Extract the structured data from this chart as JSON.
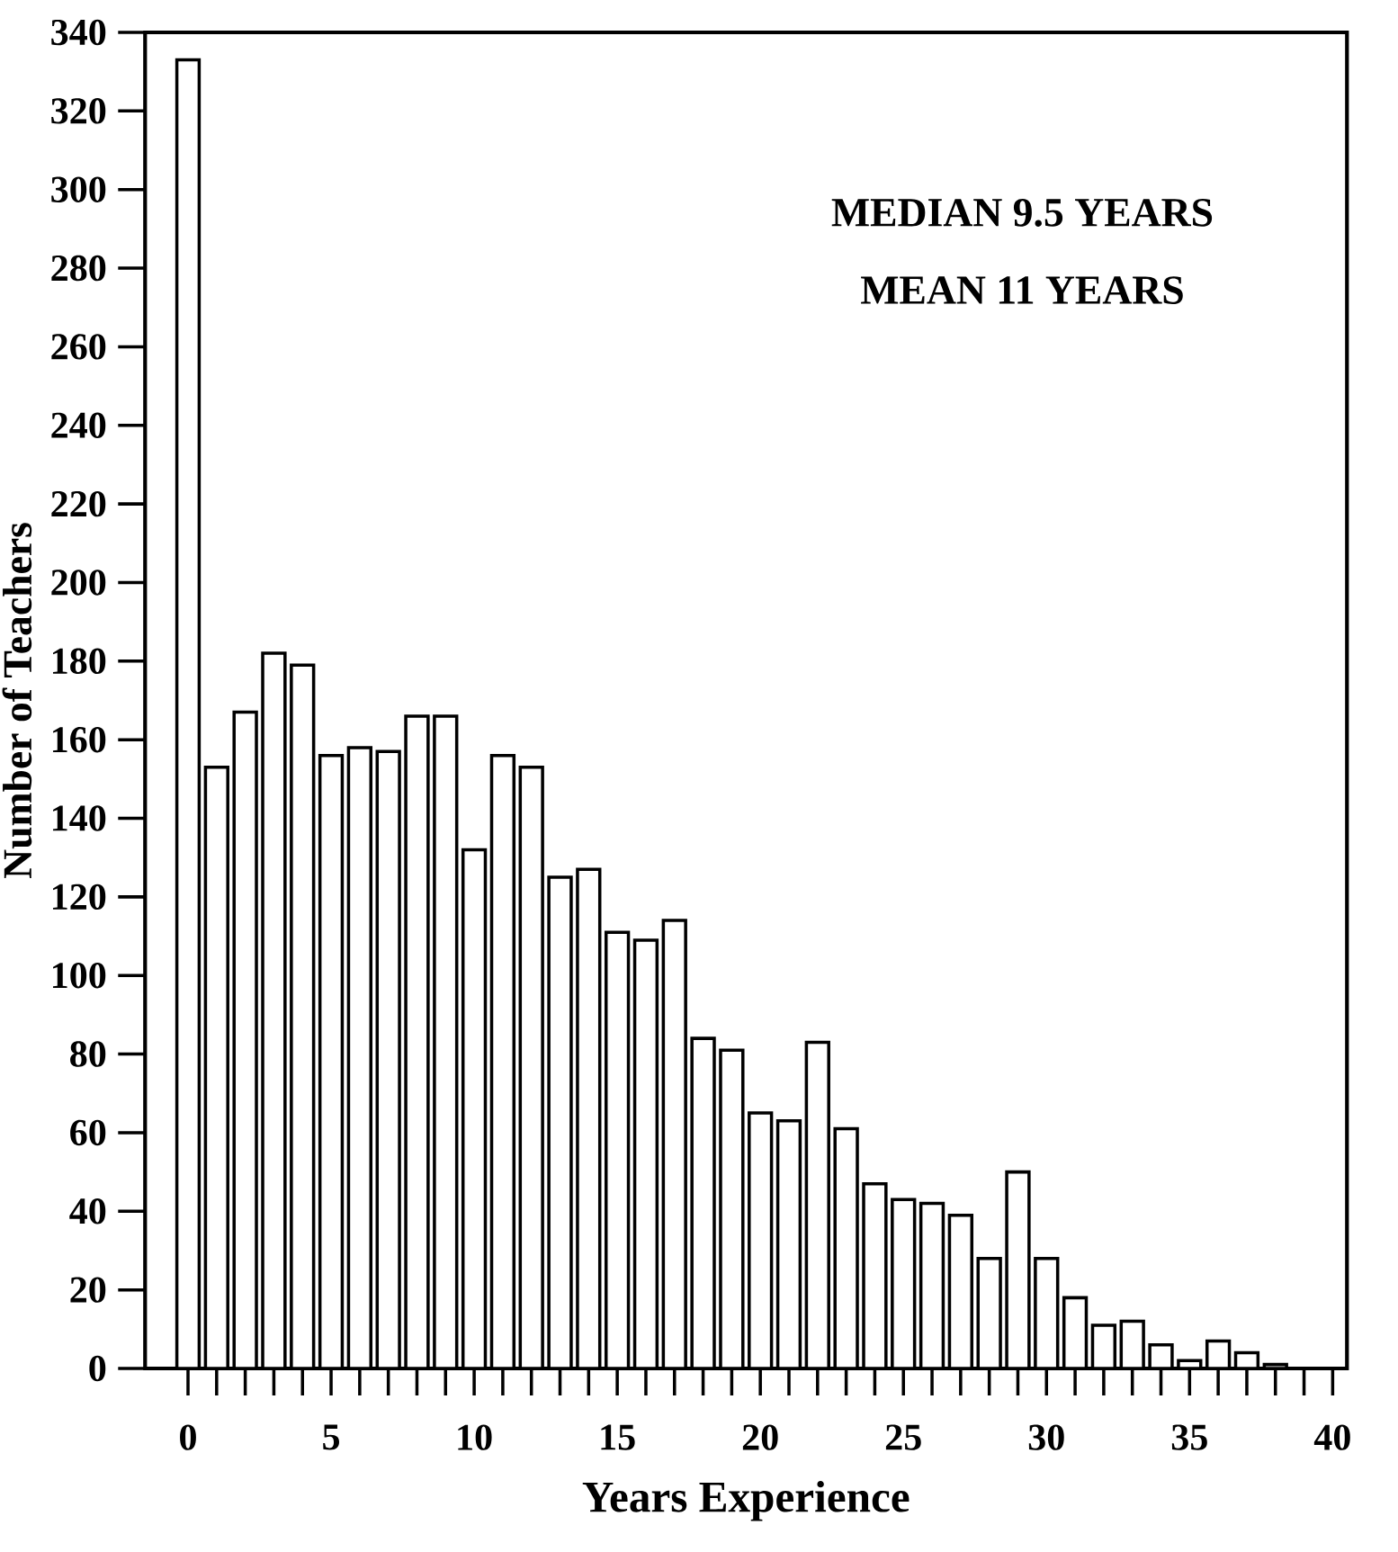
{
  "chart_data": {
    "type": "bar",
    "xlabel": "Years Experience",
    "ylabel": "Number of Teachers",
    "x": [
      0,
      1,
      2,
      3,
      4,
      5,
      6,
      7,
      8,
      9,
      10,
      11,
      12,
      13,
      14,
      15,
      16,
      17,
      18,
      19,
      20,
      21,
      22,
      23,
      24,
      25,
      26,
      27,
      28,
      29,
      30,
      31,
      32,
      33,
      34,
      35,
      36,
      37,
      38,
      39
    ],
    "values": [
      333,
      153,
      167,
      182,
      179,
      156,
      158,
      157,
      166,
      166,
      132,
      156,
      153,
      125,
      127,
      111,
      109,
      114,
      84,
      81,
      65,
      63,
      83,
      61,
      47,
      43,
      42,
      39,
      28,
      50,
      28,
      18,
      11,
      12,
      6,
      2,
      7,
      4,
      1,
      0
    ],
    "color": "#000000",
    "xlim": [
      -1.5,
      40.5
    ],
    "xticks": [
      0,
      5,
      10,
      15,
      20,
      25,
      30,
      35,
      40
    ],
    "ylim": [
      0,
      340
    ],
    "yticks": [
      0,
      20,
      40,
      60,
      80,
      100,
      120,
      140,
      160,
      180,
      200,
      220,
      240,
      260,
      280,
      300,
      320,
      340
    ],
    "annotations": [
      "MEDIAN 9.5 YEARS",
      "MEAN 11 YEARS"
    ]
  }
}
